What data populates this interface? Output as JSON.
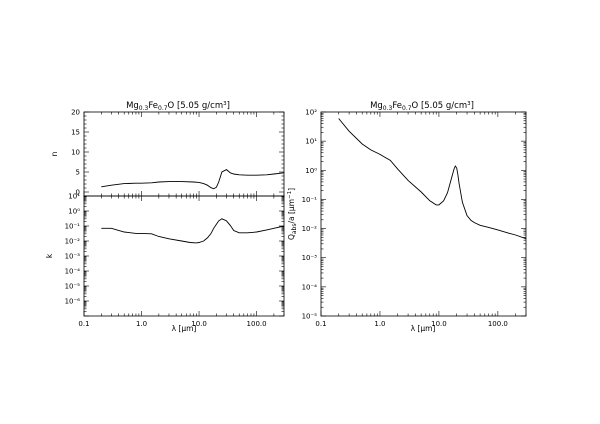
{
  "chart_data": [
    {
      "type": "line",
      "title": {
        "main": "Mg",
        "s1": "0.3",
        "mid": "Fe",
        "s2": "0.7",
        "tail": "O [5.05 g/cm",
        "sup": "3",
        "end": "]"
      },
      "ylabel": "n",
      "xscale": "log",
      "xlim": [
        0.1,
        300
      ],
      "ylim": [
        -1,
        20
      ],
      "yticks": [
        0,
        5,
        10,
        15,
        20
      ],
      "x": [
        0.2,
        0.3,
        0.5,
        0.8,
        1.0,
        1.5,
        2.0,
        3.0,
        5.0,
        8.0,
        10.0,
        12.0,
        14.0,
        16.0,
        18.0,
        20.0,
        22.0,
        25.0,
        30.0,
        35.0,
        40.0,
        50.0,
        70.0,
        100.0,
        150.0,
        200.0,
        300.0
      ],
      "y": [
        1.3,
        1.7,
        2.1,
        2.2,
        2.2,
        2.3,
        2.5,
        2.6,
        2.6,
        2.5,
        2.4,
        2.1,
        1.7,
        1.1,
        0.8,
        1.2,
        2.5,
        5.0,
        5.6,
        4.8,
        4.5,
        4.3,
        4.2,
        4.2,
        4.3,
        4.5,
        4.8
      ]
    },
    {
      "type": "line",
      "ylabel": "k",
      "xlabel": "λ [μm]",
      "xscale": "log",
      "yscale": "log",
      "xlim": [
        0.1,
        300
      ],
      "ylim": [
        1e-06,
        100
      ],
      "xticks": [
        "0.1",
        "1.0",
        "10.0",
        "100.0"
      ],
      "yticks": [
        "10¹",
        "10⁰",
        "10⁻¹",
        "10⁻²",
        "10⁻³",
        "10⁻⁴",
        "10⁻⁵",
        "10⁻⁶"
      ],
      "x": [
        0.2,
        0.3,
        0.5,
        0.8,
        1.0,
        1.5,
        2.0,
        3.0,
        5.0,
        7.0,
        9.0,
        10.0,
        12.0,
        14.0,
        16.0,
        18.0,
        20.0,
        22.0,
        25.0,
        30.0,
        35.0,
        40.0,
        50.0,
        70.0,
        100.0,
        150.0,
        200.0,
        300.0
      ],
      "y": [
        0.7,
        0.7,
        0.4,
        0.32,
        0.32,
        0.3,
        0.2,
        0.14,
        0.1,
        0.08,
        0.075,
        0.08,
        0.1,
        0.16,
        0.3,
        0.7,
        1.3,
        2.2,
        3.0,
        2.2,
        1.1,
        0.5,
        0.35,
        0.35,
        0.4,
        0.55,
        0.7,
        1.0
      ]
    },
    {
      "type": "line",
      "title": {
        "main": "Mg",
        "s1": "0.3",
        "mid": "Fe",
        "s2": "0.7",
        "tail": "O [5.05 g/cm",
        "sup": "3",
        "end": "]"
      },
      "ylabel": {
        "main": "Q",
        "sub": "abs",
        "tail": "/a [μm",
        "sup": "−1",
        "end": "]"
      },
      "xlabel": "λ [μm]",
      "xscale": "log",
      "yscale": "log",
      "xlim": [
        0.1,
        300
      ],
      "ylim": [
        1e-05,
        100
      ],
      "xticks": [
        "0.1",
        "1.0",
        "10.0",
        "100.0"
      ],
      "yticks": [
        "10²",
        "10¹",
        "10⁰",
        "10⁻¹",
        "10⁻²",
        "10⁻³",
        "10⁻⁴",
        "10⁻⁵"
      ],
      "x": [
        0.2,
        0.3,
        0.5,
        0.7,
        1.0,
        1.5,
        2.0,
        3.0,
        5.0,
        7.0,
        9.0,
        10.0,
        12.0,
        14.0,
        16.0,
        18.0,
        19.0,
        20.0,
        21.0,
        22.0,
        25.0,
        30.0,
        35.0,
        40.0,
        50.0,
        70.0,
        100.0,
        150.0,
        200.0,
        300.0
      ],
      "y": [
        60,
        22,
        8,
        5,
        3.5,
        2.2,
        1.1,
        0.45,
        0.18,
        0.09,
        0.065,
        0.065,
        0.09,
        0.17,
        0.45,
        1.1,
        1.4,
        1.2,
        0.7,
        0.35,
        0.08,
        0.028,
        0.019,
        0.016,
        0.013,
        0.011,
        0.009,
        0.007,
        0.006,
        0.0045
      ]
    }
  ]
}
